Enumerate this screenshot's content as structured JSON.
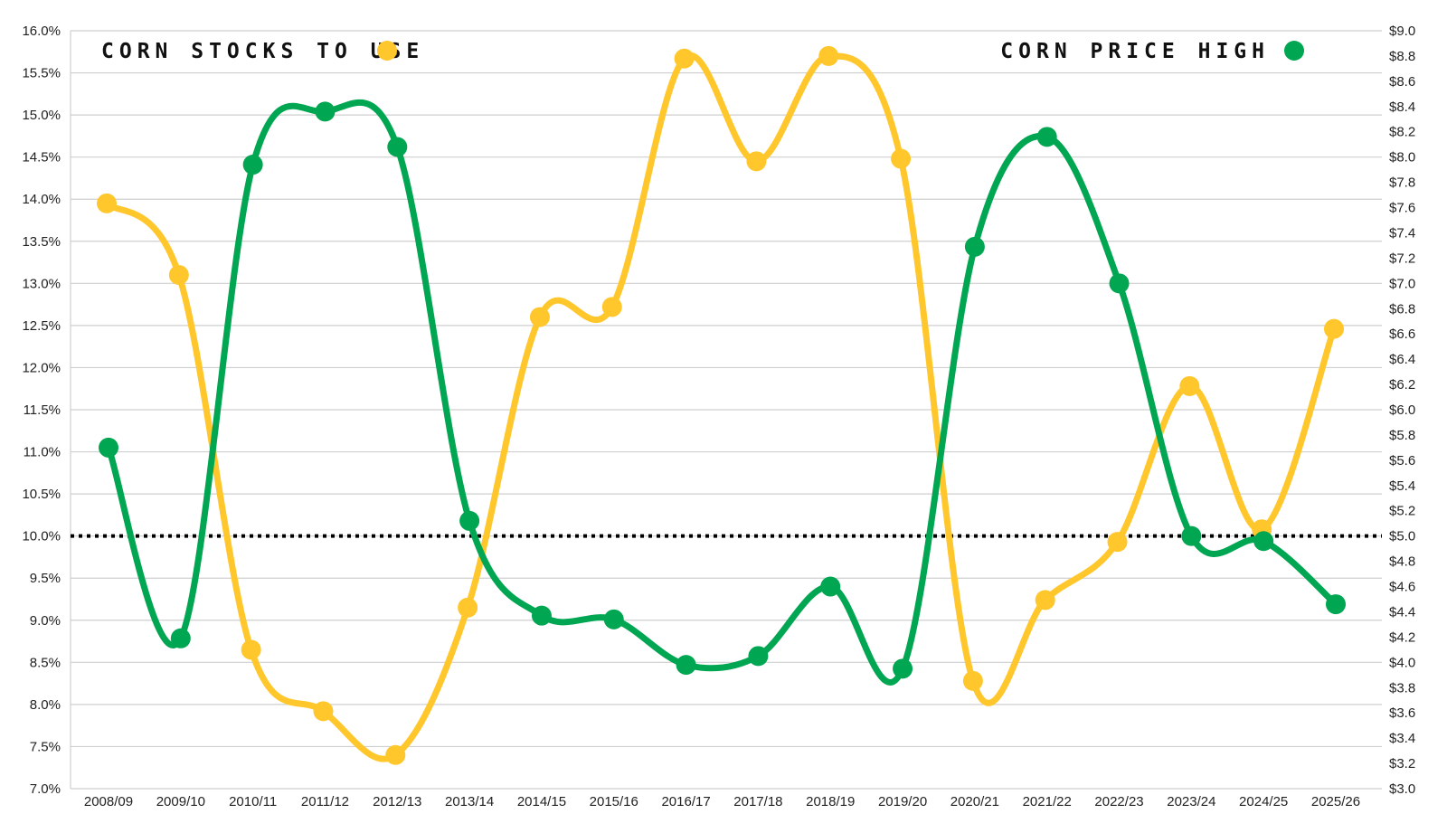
{
  "chart_data": {
    "type": "line",
    "title": "",
    "xlabel": "",
    "ylabel_left": "",
    "ylabel_right": "",
    "categories": [
      "2008/09",
      "2009/10",
      "2010/11",
      "2011/12",
      "2012/13",
      "2013/14",
      "2014/15",
      "2015/16",
      "2016/17",
      "2017/18",
      "2018/19",
      "2019/20",
      "2020/21",
      "2021/22",
      "2022/23",
      "2023/24",
      "2024/25",
      "2025/26"
    ],
    "left_axis": {
      "min": 7.0,
      "max": 16.0,
      "step": 0.5,
      "tick_labels": [
        "7.0%",
        "7.5%",
        "8.0%",
        "8.5%",
        "9.0%",
        "9.5%",
        "10.0%",
        "10.5%",
        "11.0%",
        "11.5%",
        "12.0%",
        "12.5%",
        "13.0%",
        "13.5%",
        "14.0%",
        "14.5%",
        "15.0%",
        "15.5%",
        "16.0%"
      ]
    },
    "right_axis": {
      "min": 3.0,
      "max": 9.0,
      "step": 0.2,
      "tick_labels": [
        "$3.0",
        "$3.2",
        "$3.4",
        "$3.6",
        "$3.8",
        "$4.0",
        "$4.2",
        "$4.4",
        "$4.6",
        "$4.8",
        "$5.0",
        "$5.2",
        "$5.4",
        "$5.6",
        "$5.8",
        "$6.0",
        "$6.2",
        "$6.4",
        "$6.6",
        "$6.8",
        "$7.0",
        "$7.2",
        "$7.4",
        "$7.6",
        "$7.8",
        "$8.0",
        "$8.2",
        "$8.4",
        "$8.6",
        "$8.8",
        "$9.0"
      ]
    },
    "grid": true,
    "reference_line": {
      "axis": "left",
      "value": 10.0,
      "style": "dotted"
    },
    "series": [
      {
        "name": "CORN STOCKS TO USE",
        "axis": "left",
        "color": "#FFC72C",
        "values": [
          13.95,
          13.1,
          8.65,
          7.92,
          7.4,
          9.15,
          12.6,
          12.72,
          15.67,
          14.45,
          15.7,
          14.48,
          8.28,
          9.24,
          9.93,
          11.78,
          10.08,
          12.46
        ]
      },
      {
        "name": "CORN PRICE HIGH",
        "axis": "right",
        "color": "#00A651",
        "values": [
          5.7,
          4.19,
          7.94,
          8.36,
          8.08,
          5.12,
          4.37,
          4.34,
          3.98,
          4.05,
          4.6,
          3.95,
          7.29,
          8.16,
          7.0,
          5.0,
          4.96,
          4.46
        ]
      }
    ],
    "legend": [
      {
        "label": "CORN STOCKS TO USE",
        "color": "#FFC72C",
        "position": "top-left"
      },
      {
        "label": "CORN PRICE HIGH",
        "color": "#00A651",
        "position": "top-right"
      }
    ]
  }
}
